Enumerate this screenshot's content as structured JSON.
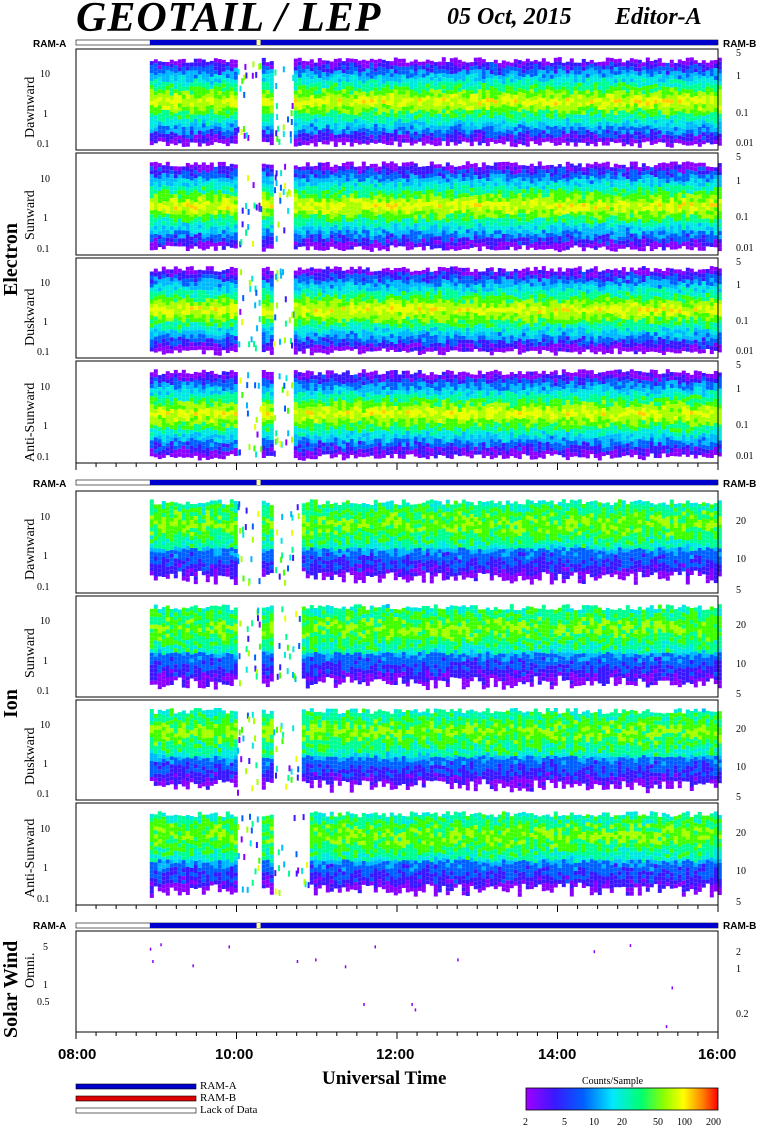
{
  "header": {
    "title": "GEOTAIL / LEP",
    "date": "05 Oct, 2015",
    "editor": "Editor-A"
  },
  "ram_labels": {
    "a": "RAM-A",
    "b": "RAM-B"
  },
  "colors": {
    "ram_a_bar": "#0000cc",
    "ram_b_bar": "#dd0000",
    "colormap": [
      "#ffffff",
      "#8a00ff",
      "#2a1bff",
      "#0070ff",
      "#00e0ff",
      "#00ff90",
      "#40ff00",
      "#c8ff00",
      "#ffff00",
      "#ff9000",
      "#ff0000"
    ]
  },
  "groups": [
    {
      "label": "Electron"
    },
    {
      "label": "Ion"
    },
    {
      "label": "Solar Wind"
    }
  ],
  "x_axis": {
    "label": "Universal Time",
    "ticks": [
      "08:00",
      "10:00",
      "12:00",
      "14:00",
      "16:00"
    ]
  },
  "legend": {
    "ram_a": "RAM-A",
    "ram_b": "RAM-B",
    "lack": "Lack of Data"
  },
  "colorbar": {
    "title": "Counts/Sample",
    "ticks": [
      "2",
      "5",
      "10",
      "20",
      "50",
      "100",
      "200"
    ]
  },
  "chart_data": [
    {
      "type": "heatmap",
      "group": "Electron",
      "title": "Dawnward",
      "ylabel": "Dawnward",
      "y_left_ticks": [
        "10",
        "1",
        "0.1"
      ],
      "y_right_ticks": [
        "5",
        "1",
        "0.1",
        "0.01"
      ],
      "x_range": [
        "08:00",
        "16:00"
      ],
      "colorbar_range": [
        2,
        200
      ],
      "data_start_hour": 8.92,
      "gaps_hours": [
        [
          10.0,
          10.3
        ],
        [
          10.45,
          10.7
        ]
      ]
    },
    {
      "type": "heatmap",
      "group": "Electron",
      "title": "Sunward",
      "ylabel": "Sunward",
      "y_left_ticks": [
        "10",
        "1",
        "0.1"
      ],
      "y_right_ticks": [
        "5",
        "1",
        "0.1",
        "0.01"
      ],
      "x_range": [
        "08:00",
        "16:00"
      ],
      "colorbar_range": [
        2,
        200
      ],
      "data_start_hour": 8.92,
      "gaps_hours": [
        [
          10.0,
          10.3
        ],
        [
          10.45,
          10.7
        ]
      ]
    },
    {
      "type": "heatmap",
      "group": "Electron",
      "title": "Duskward",
      "ylabel": "Duskward",
      "y_left_ticks": [
        "10",
        "1",
        "0.1"
      ],
      "y_right_ticks": [
        "5",
        "1",
        "0.1",
        "0.01"
      ],
      "x_range": [
        "08:00",
        "16:00"
      ],
      "colorbar_range": [
        2,
        200
      ],
      "data_start_hour": 8.92,
      "gaps_hours": [
        [
          10.0,
          10.3
        ],
        [
          10.45,
          10.7
        ]
      ]
    },
    {
      "type": "heatmap",
      "group": "Electron",
      "title": "Anti-Sunward",
      "ylabel": "Anti-Sunward",
      "y_left_ticks": [
        "10",
        "1",
        "0.1"
      ],
      "y_right_ticks": [
        "5",
        "1",
        "0.1",
        "0.01"
      ],
      "x_range": [
        "08:00",
        "16:00"
      ],
      "colorbar_range": [
        2,
        200
      ],
      "data_start_hour": 8.92,
      "gaps_hours": [
        [
          10.0,
          10.3
        ],
        [
          10.45,
          10.7
        ]
      ]
    },
    {
      "type": "heatmap",
      "group": "Ion",
      "title": "Dawnward",
      "ylabel": "Dawnward",
      "y_left_ticks": [
        "10",
        "1",
        "0.1"
      ],
      "y_right_ticks": [
        "20",
        "10",
        "5"
      ],
      "x_range": [
        "08:00",
        "16:00"
      ],
      "colorbar_range": [
        2,
        200
      ],
      "data_start_hour": 8.92,
      "gaps_hours": [
        [
          10.0,
          10.3
        ],
        [
          10.45,
          10.8
        ]
      ]
    },
    {
      "type": "heatmap",
      "group": "Ion",
      "title": "Sunward",
      "ylabel": "Sunward",
      "y_left_ticks": [
        "10",
        "1",
        "0.1"
      ],
      "y_right_ticks": [
        "20",
        "10",
        "5"
      ],
      "x_range": [
        "08:00",
        "16:00"
      ],
      "colorbar_range": [
        2,
        200
      ],
      "data_start_hour": 8.92,
      "gaps_hours": [
        [
          10.0,
          10.3
        ],
        [
          10.45,
          10.8
        ]
      ]
    },
    {
      "type": "heatmap",
      "group": "Ion",
      "title": "Duskward",
      "ylabel": "Duskward",
      "y_left_ticks": [
        "10",
        "1",
        "0.1"
      ],
      "y_right_ticks": [
        "20",
        "10",
        "5"
      ],
      "x_range": [
        "08:00",
        "16:00"
      ],
      "colorbar_range": [
        2,
        200
      ],
      "data_start_hour": 8.92,
      "gaps_hours": [
        [
          10.0,
          10.3
        ],
        [
          10.45,
          10.8
        ]
      ]
    },
    {
      "type": "heatmap",
      "group": "Ion",
      "title": "Anti-Sunward",
      "ylabel": "Anti-Sunward",
      "y_left_ticks": [
        "10",
        "1",
        "0.1"
      ],
      "y_right_ticks": [
        "20",
        "10",
        "5"
      ],
      "x_range": [
        "08:00",
        "16:00"
      ],
      "colorbar_range": [
        2,
        200
      ],
      "data_start_hour": 8.92,
      "gaps_hours": [
        [
          10.0,
          10.3
        ],
        [
          10.45,
          10.9
        ]
      ]
    },
    {
      "type": "scatter",
      "group": "Solar Wind",
      "title": "Omni.",
      "ylabel": "Omni.",
      "y_left_ticks": [
        "5",
        "1",
        "0.5"
      ],
      "y_right_ticks": [
        "2",
        "1",
        "0.2"
      ],
      "x_range": [
        "08:00",
        "16:00"
      ],
      "x": [
        8.92,
        8.95,
        9.05,
        9.45,
        9.9,
        10.75,
        10.98,
        11.35,
        11.58,
        11.72,
        12.18,
        12.22,
        12.75,
        14.45,
        14.9,
        15.35,
        15.42
      ],
      "y": [
        5.0,
        3.0,
        6.0,
        2.5,
        5.5,
        3.0,
        3.2,
        2.4,
        0.5,
        5.5,
        0.5,
        0.4,
        3.2,
        4.5,
        5.8,
        0.2,
        1.0
      ]
    }
  ]
}
